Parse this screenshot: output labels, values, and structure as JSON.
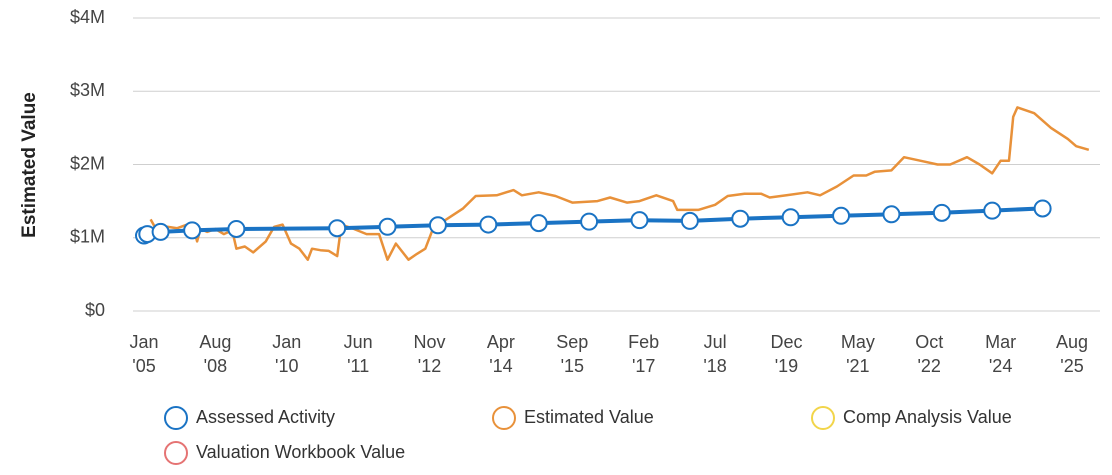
{
  "chart_data": {
    "type": "line",
    "y_label": "Estimated Value",
    "ylim": [
      0,
      4000000
    ],
    "yticks": [
      {
        "value": 0,
        "label": "$0"
      },
      {
        "value": 1000000,
        "label": "$1M"
      },
      {
        "value": 2000000,
        "label": "$2M"
      },
      {
        "value": 3000000,
        "label": "$3M"
      },
      {
        "value": 4000000,
        "label": "$4M"
      }
    ],
    "xticks": [
      {
        "value": "2005-01",
        "label": [
          "Jan",
          "'05"
        ]
      },
      {
        "value": "2008-08",
        "label": [
          "Aug",
          "'08"
        ]
      },
      {
        "value": "2010-01",
        "label": [
          "Jan",
          "'10"
        ]
      },
      {
        "value": "2011-06",
        "label": [
          "Jun",
          "'11"
        ]
      },
      {
        "value": "2012-11",
        "label": [
          "Nov",
          "'12"
        ]
      },
      {
        "value": "2014-04",
        "label": [
          "Apr",
          "'14"
        ]
      },
      {
        "value": "2015-09",
        "label": [
          "Sep",
          "'15"
        ]
      },
      {
        "value": "2017-02",
        "label": [
          "Feb",
          "'17"
        ]
      },
      {
        "value": "2018-07",
        "label": [
          "Jul",
          "'18"
        ]
      },
      {
        "value": "2019-12",
        "label": [
          "Dec",
          "'19"
        ]
      },
      {
        "value": "2021-05",
        "label": [
          "May",
          "'21"
        ]
      },
      {
        "value": "2022-10",
        "label": [
          "Oct",
          "'22"
        ]
      },
      {
        "value": "2024-03",
        "label": [
          "Mar",
          "'24"
        ]
      },
      {
        "value": "2025-08",
        "label": [
          "Aug",
          "'25"
        ]
      }
    ],
    "grid": true,
    "series": [
      {
        "name": "Assessed Activity",
        "color": "#1a73c4",
        "markers": true,
        "x": [
          "2005-01",
          "2005-03",
          "2005-11",
          "2007-06",
          "2009-01",
          "2011-01",
          "2012-01",
          "2013-01",
          "2014-01",
          "2015-01",
          "2016-01",
          "2017-01",
          "2018-01",
          "2019-01",
          "2020-01",
          "2021-01",
          "2022-01",
          "2023-01",
          "2024-01",
          "2025-01"
        ],
        "values": [
          1030000,
          1050000,
          1080000,
          1100000,
          1120000,
          1130000,
          1150000,
          1170000,
          1180000,
          1200000,
          1220000,
          1240000,
          1230000,
          1260000,
          1280000,
          1300000,
          1320000,
          1340000,
          1370000,
          1400000
        ]
      },
      {
        "name": "Estimated Value",
        "color": "#e8913a",
        "markers": false,
        "x": [
          "2005-05",
          "2005-08",
          "2006-03",
          "2006-09",
          "2007-03",
          "2007-06",
          "2007-09",
          "2007-11",
          "2008-03",
          "2008-08",
          "2008-10",
          "2008-12",
          "2009-01",
          "2009-03",
          "2009-05",
          "2009-08",
          "2009-10",
          "2009-12",
          "2010-02",
          "2010-04",
          "2010-06",
          "2010-07",
          "2010-09",
          "2010-11",
          "2011-01",
          "2011-02",
          "2011-05",
          "2011-08",
          "2011-11",
          "2012-01",
          "2012-03",
          "2012-06",
          "2012-08",
          "2012-10",
          "2012-12",
          "2013-03",
          "2013-07",
          "2013-10",
          "2014-03",
          "2014-07",
          "2014-09",
          "2015-01",
          "2015-05",
          "2015-09",
          "2016-03",
          "2016-06",
          "2016-10",
          "2017-01",
          "2017-05",
          "2017-09",
          "2017-10",
          "2018-03",
          "2018-07",
          "2018-10",
          "2019-02",
          "2019-06",
          "2019-08",
          "2019-12",
          "2020-05",
          "2020-08",
          "2020-12",
          "2021-04",
          "2021-07",
          "2021-09",
          "2022-01",
          "2022-04",
          "2022-08",
          "2022-12",
          "2023-03",
          "2023-07",
          "2023-10",
          "2024-01",
          "2024-03",
          "2024-05",
          "2024-06",
          "2024-07",
          "2024-11",
          "2025-03",
          "2025-07",
          "2025-09",
          "2025-12"
        ],
        "values": [
          1250000,
          1130000,
          1150000,
          1130000,
          1180000,
          1200000,
          950000,
          1120000,
          1080000,
          1120000,
          1050000,
          1100000,
          850000,
          880000,
          800000,
          950000,
          1150000,
          1180000,
          920000,
          850000,
          700000,
          850000,
          830000,
          820000,
          750000,
          1180000,
          1120000,
          1050000,
          1050000,
          700000,
          920000,
          700000,
          780000,
          850000,
          1150000,
          1250000,
          1400000,
          1570000,
          1580000,
          1650000,
          1580000,
          1620000,
          1570000,
          1480000,
          1500000,
          1550000,
          1480000,
          1500000,
          1580000,
          1500000,
          1380000,
          1380000,
          1450000,
          1570000,
          1600000,
          1600000,
          1550000,
          1580000,
          1620000,
          1580000,
          1700000,
          1850000,
          1850000,
          1900000,
          1920000,
          2100000,
          2050000,
          2000000,
          2000000,
          2100000,
          2000000,
          1880000,
          2050000,
          2050000,
          2650000,
          2780000,
          2700000,
          2500000,
          2350000,
          2250000,
          2200000
        ]
      },
      {
        "name": "Comp Analysis Value",
        "color": "#f2d54a",
        "markers": false,
        "x": [],
        "values": []
      },
      {
        "name": "Valuation Workbook Value",
        "color": "#e57373",
        "markers": false,
        "x": [],
        "values": []
      }
    ]
  }
}
